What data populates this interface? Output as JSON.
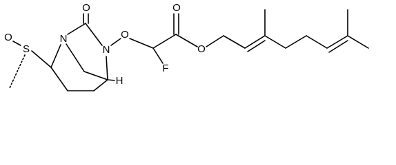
{
  "molecule": {
    "atoms": [
      {
        "label": "O"
      },
      {
        "label": "N"
      },
      {
        "label": "N"
      },
      {
        "label": "O"
      },
      {
        "label": "O"
      },
      {
        "label": "O"
      },
      {
        "label": "F"
      },
      {
        "label": "O"
      },
      {
        "label": "S"
      },
      {
        "label": "H"
      }
    ]
  }
}
